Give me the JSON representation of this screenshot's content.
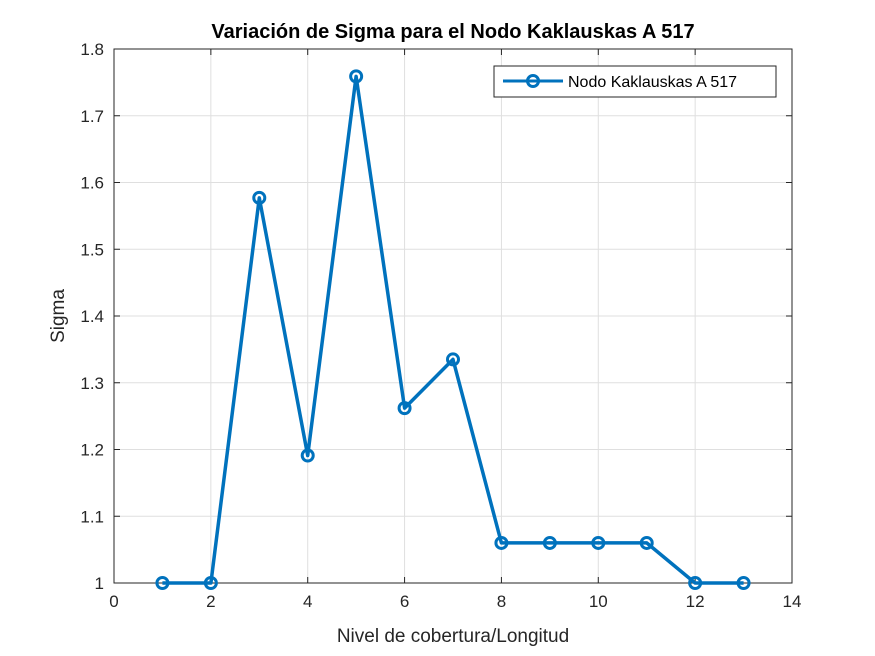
{
  "chart_data": {
    "type": "line",
    "title": "Variación de Sigma para el Nodo Kaklauskas A 517",
    "xlabel": "Nivel de cobertura/Longitud",
    "ylabel": "Sigma",
    "xlim": [
      0,
      14
    ],
    "ylim": [
      1,
      1.8
    ],
    "xticks": [
      0,
      2,
      4,
      6,
      8,
      10,
      12,
      14
    ],
    "yticks": [
      1,
      1.1,
      1.2,
      1.3,
      1.4,
      1.5,
      1.6,
      1.7,
      1.8
    ],
    "grid": true,
    "legend_position": "top-right",
    "series": [
      {
        "name": "Nodo Kaklauskas A 517",
        "color": "#0072BD",
        "marker": "circle",
        "x": [
          1,
          2,
          3,
          4,
          5,
          6,
          7,
          8,
          9,
          10,
          11,
          12,
          13
        ],
        "y": [
          1.0,
          1.0,
          1.577,
          1.191,
          1.759,
          1.262,
          1.335,
          1.06,
          1.06,
          1.06,
          1.06,
          1.0,
          1.0
        ]
      }
    ]
  }
}
